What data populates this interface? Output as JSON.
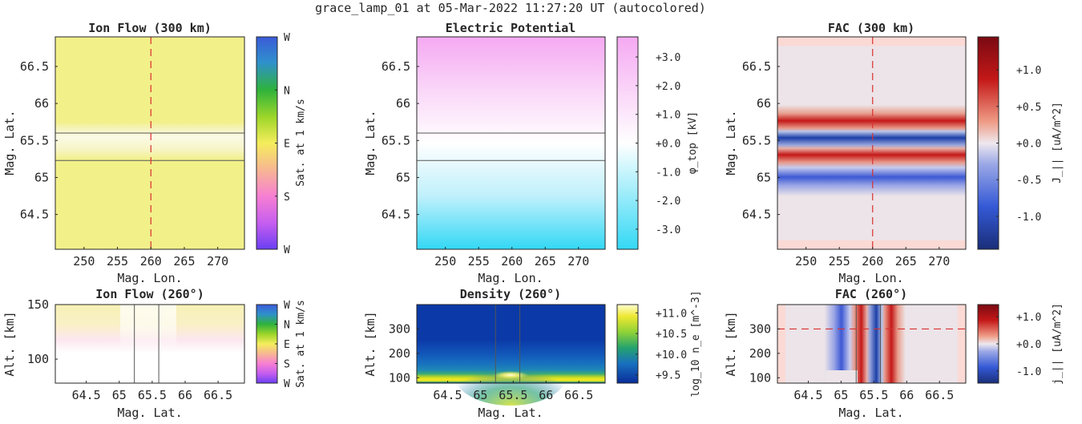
{
  "title": "grace_lamp_01 at 05-Mar-2022 11:27:20 UT (autocolored)",
  "chart_data": [
    {
      "id": "ion-flow-300",
      "type": "heatmap",
      "title": "Ion Flow (300 km)",
      "xlabel": "Mag. Lon.",
      "ylabel": "Mag. Lat.",
      "xlim": [
        245.7,
        274.0
      ],
      "ylim": [
        64.03,
        66.9
      ],
      "xticks": [
        "250",
        "255",
        "260",
        "265",
        "270"
      ],
      "xtick_values": [
        250,
        255,
        260,
        265,
        270
      ],
      "yticks": [
        "64.5",
        "65",
        "65.5",
        "66",
        "66.5"
      ],
      "ytick_values": [
        64.5,
        65,
        65.5,
        66,
        66.5
      ],
      "lines": {
        "horizontal": [
          65.6,
          65.23
        ],
        "vertical_dashed": 260
      },
      "colorbar": {
        "label": "Sat. at 1 km/s",
        "ticks": [
          "W",
          "N",
          "E",
          "S",
          "W"
        ],
        "ticklabels_top_to_bottom": true
      }
    },
    {
      "id": "electric-potential",
      "type": "heatmap",
      "title": "Electric Potential",
      "xlabel": "Mag. Lon.",
      "ylabel": "Mag. Lat.",
      "xlim": [
        245.7,
        274.0
      ],
      "ylim": [
        64.03,
        66.9
      ],
      "xticks": [
        "250",
        "255",
        "260",
        "265",
        "270"
      ],
      "xtick_values": [
        250,
        255,
        260,
        265,
        270
      ],
      "yticks": [
        "64.5",
        "65",
        "65.5",
        "66",
        "66.5"
      ],
      "ytick_values": [
        64.5,
        65,
        65.5,
        66,
        66.5
      ],
      "lines": {
        "horizontal": [
          65.6,
          65.23
        ]
      },
      "colorbar": {
        "label": "φ_top [kV]",
        "range": [
          -3.7,
          3.7
        ],
        "ticks": [
          "+3.0",
          "+2.0",
          "+1.0",
          "+0.0",
          "-1.0",
          "-2.0",
          "-3.0"
        ],
        "tick_values": [
          3,
          2,
          1,
          0,
          -1,
          -2,
          -3
        ]
      }
    },
    {
      "id": "fac-300",
      "type": "heatmap",
      "title": "FAC (300 km)",
      "xlabel": "Mag. Lon.",
      "ylabel": "Mag. Lat.",
      "xlim": [
        245.7,
        274.0
      ],
      "ylim": [
        64.03,
        66.9
      ],
      "xticks": [
        "250",
        "255",
        "260",
        "265",
        "270"
      ],
      "xtick_values": [
        250,
        255,
        260,
        265,
        270
      ],
      "yticks": [
        "64.5",
        "65",
        "65.5",
        "66",
        "66.5"
      ],
      "ytick_values": [
        64.5,
        65,
        65.5,
        66,
        66.5
      ],
      "lines": {
        "vertical_dashed": 260
      },
      "colorbar": {
        "label": "J_|| [uA/m^2]",
        "range": [
          -1.45,
          1.45
        ],
        "ticks": [
          "+1.0",
          "+0.5",
          "+0.0",
          "-0.5",
          "-1.0"
        ],
        "tick_values": [
          1,
          0.5,
          0,
          -0.5,
          -1
        ]
      }
    },
    {
      "id": "ion-flow-260",
      "type": "heatmap",
      "title": "Ion Flow (260°)",
      "xlabel": "Mag. Lat.",
      "ylabel": "Alt. [km]",
      "xlim": [
        64.03,
        66.9
      ],
      "ylim": [
        78,
        150
      ],
      "xticks": [
        "64.5",
        "65",
        "65.5",
        "66",
        "66.5"
      ],
      "xtick_values": [
        64.5,
        65,
        65.5,
        66,
        66.5
      ],
      "yticks": [
        "100",
        "150"
      ],
      "ytick_values": [
        100,
        150
      ],
      "lines": {
        "vertical": [
          65.23,
          65.6
        ]
      },
      "colorbar": {
        "label": "Sat. at 1 km/s",
        "ticks": [
          "W",
          "N",
          "E",
          "S",
          "W"
        ]
      }
    },
    {
      "id": "density-260",
      "type": "heatmap",
      "title": "Density (260°)",
      "xlabel": "Mag. Lat.",
      "ylabel": "Alt. [km]",
      "xlim": [
        64.03,
        66.9
      ],
      "ylim": [
        78,
        400
      ],
      "xticks": [
        "64.5",
        "65",
        "65.5",
        "66",
        "66.5"
      ],
      "xtick_values": [
        64.5,
        65,
        65.5,
        66,
        66.5
      ],
      "yticks": [
        "100",
        "200",
        "300"
      ],
      "ytick_values": [
        100,
        200,
        300
      ],
      "lines": {
        "vertical": [
          65.23,
          65.6
        ]
      },
      "colorbar": {
        "label": "log_10 n_e [m^-3]",
        "range": [
          9.3,
          11.2
        ],
        "ticks": [
          "+11.0",
          "+10.5",
          "+10.0",
          "+9.5"
        ],
        "tick_values": [
          11,
          10.5,
          10,
          9.5
        ]
      }
    },
    {
      "id": "fac-260",
      "type": "heatmap",
      "title": "FAC (260°)",
      "xlabel": "Mag. Lat.",
      "ylabel": "Alt. [km]",
      "xlim": [
        64.03,
        66.9
      ],
      "ylim": [
        78,
        400
      ],
      "xticks": [
        "64.5",
        "65",
        "65.5",
        "66",
        "66.5"
      ],
      "xtick_values": [
        64.5,
        65,
        65.5,
        66,
        66.5
      ],
      "yticks": [
        "100",
        "200",
        "300"
      ],
      "ytick_values": [
        100,
        200,
        300
      ],
      "lines": {
        "vertical": [
          65.23,
          65.6
        ],
        "horizontal_dashed": 300
      },
      "colorbar": {
        "label": "j_|| [uA/m^2]",
        "range": [
          -1.45,
          1.45
        ],
        "ticks": [
          "+1.0",
          "+0.0",
          "-1.0"
        ],
        "tick_values": [
          1,
          0,
          -1
        ]
      }
    }
  ]
}
